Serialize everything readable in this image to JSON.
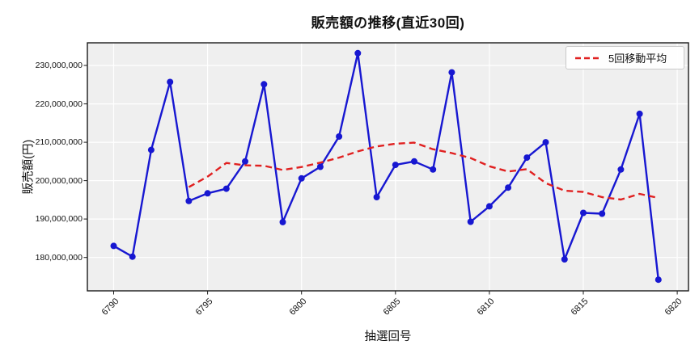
{
  "title": "販売額の推移(直近30回)",
  "axes": {
    "xlabel": "抽選回号",
    "ylabel": "販売額(円)"
  },
  "legend": {
    "label": "5回移動平均"
  },
  "chart_data": {
    "type": "line",
    "title": "販売額の推移(直近30回)",
    "xlabel": "抽選回号",
    "ylabel": "販売額(円)",
    "x": [
      6790,
      6791,
      6792,
      6793,
      6794,
      6795,
      6796,
      6797,
      6798,
      6799,
      6800,
      6801,
      6802,
      6803,
      6804,
      6805,
      6806,
      6807,
      6808,
      6809,
      6810,
      6811,
      6812,
      6813,
      6814,
      6815,
      6816,
      6817,
      6818,
      6819
    ],
    "series": [
      {
        "name": "販売額",
        "color": "#1717d1",
        "line_style": "solid",
        "marker": "circle",
        "values": [
          183000000,
          180200000,
          208000000,
          225700000,
          194700000,
          196700000,
          197900000,
          205000000,
          225100000,
          189200000,
          200600000,
          203600000,
          211500000,
          233200000,
          195700000,
          204100000,
          205000000,
          202900000,
          228200000,
          189300000,
          193300000,
          198200000,
          206000000,
          210000000,
          179500000,
          191600000,
          191400000,
          202900000,
          217400000,
          174200000
        ]
      },
      {
        "name": "5回移動平均",
        "color": "#e02020",
        "line_style": "dashed",
        "marker": "none",
        "values": [
          null,
          null,
          null,
          null,
          198320000,
          201060000,
          204600000,
          204000000,
          203880000,
          202780000,
          203560000,
          204700000,
          206000000,
          207620000,
          208920000,
          209620000,
          209900000,
          208180000,
          207180000,
          205900000,
          203740000,
          202380000,
          203000000,
          199360000,
          197400000,
          197060000,
          195700000,
          195080000,
          196560000,
          195500000
        ]
      }
    ],
    "x_ticks": [
      6790,
      6795,
      6800,
      6805,
      6810,
      6815,
      6820
    ],
    "x_tick_labels": [
      "6790",
      "6795",
      "6800",
      "6805",
      "6810",
      "6815",
      "6820"
    ],
    "y_ticks": [
      180000000,
      190000000,
      200000000,
      210000000,
      220000000,
      230000000
    ],
    "y_tick_labels": [
      "180,000,000",
      "190,000,000",
      "200,000,000",
      "210,000,000",
      "220,000,000",
      "230,000,000"
    ],
    "xlim": [
      6788.6,
      6820.6
    ],
    "ylim": [
      171300000,
      235900000
    ],
    "grid": true,
    "background_color": "#efefef",
    "grid_color": "#ffffff",
    "frame_color": "#1a1a1a",
    "legend_position": "upper right"
  }
}
